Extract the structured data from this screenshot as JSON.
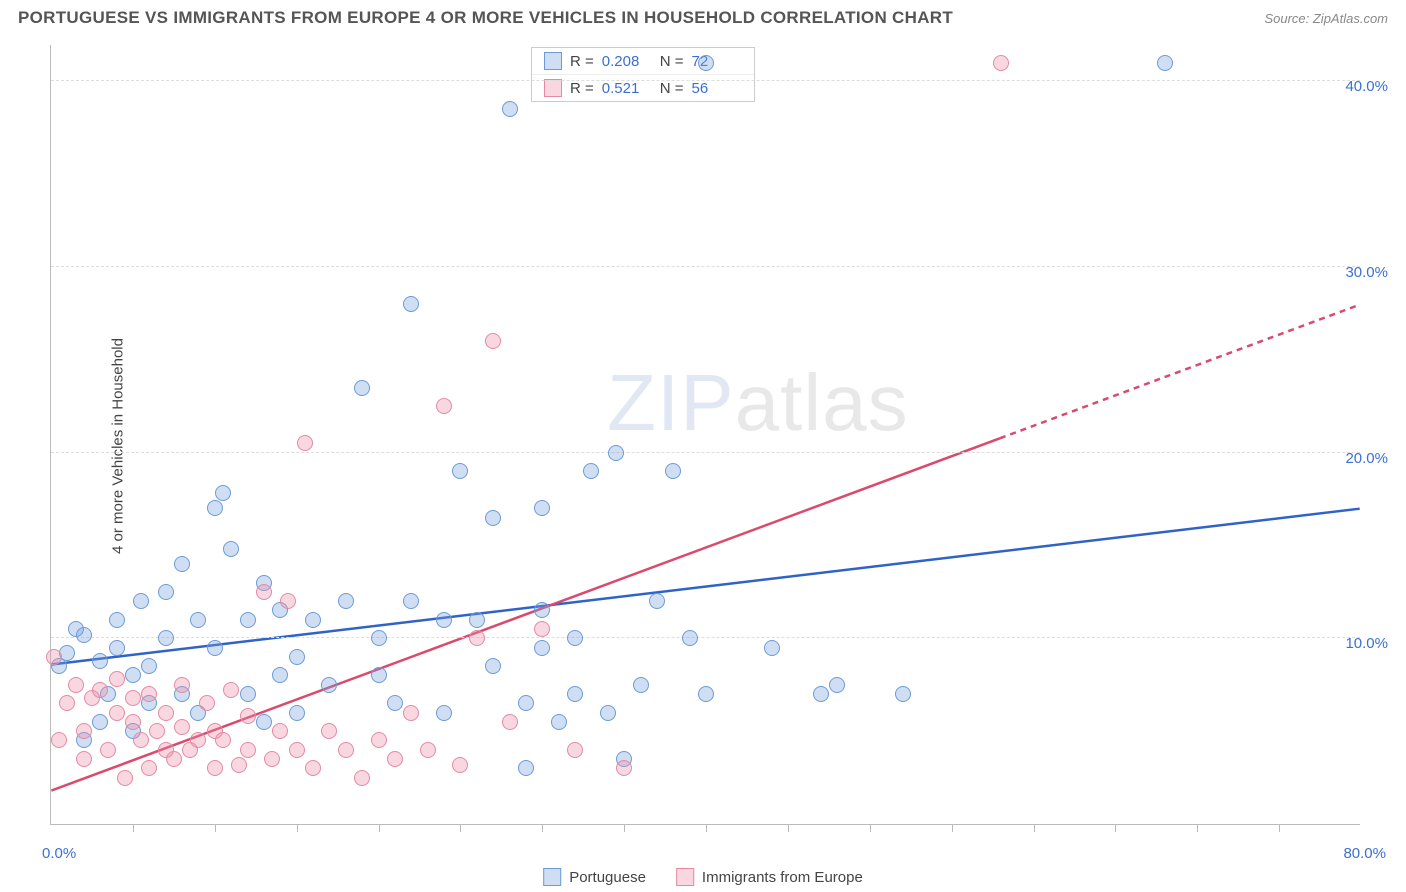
{
  "title": "PORTUGUESE VS IMMIGRANTS FROM EUROPE 4 OR MORE VEHICLES IN HOUSEHOLD CORRELATION CHART",
  "source": "Source: ZipAtlas.com",
  "watermark": "ZIPatlas",
  "y_axis_label": "4 or more Vehicles in Household",
  "chart": {
    "type": "scatter",
    "xlim": [
      0,
      80
    ],
    "ylim": [
      0,
      42
    ],
    "x_origin_label": "0.0%",
    "x_max_label": "80.0%",
    "y_ticks": [
      10,
      20,
      30,
      40
    ],
    "y_tick_labels": [
      "10.0%",
      "20.0%",
      "30.0%",
      "40.0%"
    ],
    "x_minor_ticks": [
      5,
      10,
      15,
      20,
      25,
      30,
      35,
      40,
      45,
      50,
      55,
      60,
      65,
      70,
      75
    ],
    "grid_color": "#dddddd",
    "background_color": "#ffffff",
    "point_radius": 8,
    "series": [
      {
        "name": "Portuguese",
        "fill": "rgba(120,160,220,0.35)",
        "stroke": "#6b9bd8",
        "trend_color": "#2f63c7",
        "r": "0.208",
        "n": "72",
        "trend": {
          "y_at_x0": 8.6,
          "y_at_x80": 17.0
        },
        "points": [
          [
            0.5,
            8.5
          ],
          [
            1,
            9.2
          ],
          [
            1.5,
            10.5
          ],
          [
            2,
            10.2
          ],
          [
            2,
            4.5
          ],
          [
            3,
            8.8
          ],
          [
            3,
            5.5
          ],
          [
            3.5,
            7
          ],
          [
            4,
            11
          ],
          [
            4,
            9.5
          ],
          [
            5,
            8
          ],
          [
            5,
            5
          ],
          [
            5.5,
            12
          ],
          [
            6,
            8.5
          ],
          [
            6,
            6.5
          ],
          [
            7,
            10
          ],
          [
            7,
            12.5
          ],
          [
            8,
            7
          ],
          [
            8,
            14
          ],
          [
            9,
            6
          ],
          [
            9,
            11
          ],
          [
            10,
            9.5
          ],
          [
            10,
            17
          ],
          [
            10.5,
            17.8
          ],
          [
            11,
            14.8
          ],
          [
            12,
            7
          ],
          [
            12,
            11
          ],
          [
            13,
            5.5
          ],
          [
            13,
            13
          ],
          [
            14,
            8
          ],
          [
            14,
            11.5
          ],
          [
            15,
            6
          ],
          [
            15,
            9
          ],
          [
            16,
            11
          ],
          [
            17,
            7.5
          ],
          [
            18,
            12
          ],
          [
            19,
            23.5
          ],
          [
            20,
            8
          ],
          [
            20,
            10
          ],
          [
            21,
            6.5
          ],
          [
            22,
            12
          ],
          [
            22,
            28
          ],
          [
            24,
            6
          ],
          [
            24,
            11
          ],
          [
            25,
            19
          ],
          [
            26,
            11
          ],
          [
            27,
            8.5
          ],
          [
            27,
            16.5
          ],
          [
            28,
            38.5
          ],
          [
            29,
            3
          ],
          [
            29,
            6.5
          ],
          [
            30,
            9.5
          ],
          [
            30,
            11.5
          ],
          [
            30,
            17
          ],
          [
            31,
            5.5
          ],
          [
            32,
            7
          ],
          [
            32,
            10
          ],
          [
            33,
            19
          ],
          [
            34,
            6
          ],
          [
            34.5,
            20
          ],
          [
            35,
            3.5
          ],
          [
            36,
            7.5
          ],
          [
            37,
            12
          ],
          [
            38,
            19
          ],
          [
            39,
            10
          ],
          [
            40,
            7
          ],
          [
            40,
            41
          ],
          [
            44,
            9.5
          ],
          [
            47,
            7
          ],
          [
            48,
            7.5
          ],
          [
            52,
            7
          ],
          [
            68,
            41
          ]
        ]
      },
      {
        "name": "Immigrants from Europe",
        "fill": "rgba(235,140,165,0.35)",
        "stroke": "#e48aa3",
        "trend_color": "#d94a6e",
        "r": "0.521",
        "n": "56",
        "trend": {
          "y_at_x0": 1.8,
          "y_at_x80": 28.0
        },
        "points": [
          [
            0.2,
            9
          ],
          [
            0.5,
            4.5
          ],
          [
            1,
            6.5
          ],
          [
            1.5,
            7.5
          ],
          [
            2,
            5
          ],
          [
            2,
            3.5
          ],
          [
            2.5,
            6.8
          ],
          [
            3,
            7.2
          ],
          [
            3.5,
            4
          ],
          [
            4,
            6
          ],
          [
            4,
            7.8
          ],
          [
            4.5,
            2.5
          ],
          [
            5,
            5.5
          ],
          [
            5,
            6.8
          ],
          [
            5.5,
            4.5
          ],
          [
            6,
            3
          ],
          [
            6,
            7
          ],
          [
            6.5,
            5
          ],
          [
            7,
            4
          ],
          [
            7,
            6
          ],
          [
            7.5,
            3.5
          ],
          [
            8,
            5.2
          ],
          [
            8,
            7.5
          ],
          [
            8.5,
            4
          ],
          [
            9,
            4.5
          ],
          [
            9.5,
            6.5
          ],
          [
            10,
            3
          ],
          [
            10,
            5
          ],
          [
            10.5,
            4.5
          ],
          [
            11,
            7.2
          ],
          [
            11.5,
            3.2
          ],
          [
            12,
            5.8
          ],
          [
            12,
            4
          ],
          [
            13,
            12.5
          ],
          [
            13.5,
            3.5
          ],
          [
            14,
            5
          ],
          [
            14.5,
            12
          ],
          [
            15,
            4
          ],
          [
            15.5,
            20.5
          ],
          [
            16,
            3
          ],
          [
            17,
            5
          ],
          [
            18,
            4
          ],
          [
            19,
            2.5
          ],
          [
            20,
            4.5
          ],
          [
            21,
            3.5
          ],
          [
            22,
            6
          ],
          [
            23,
            4
          ],
          [
            24,
            22.5
          ],
          [
            25,
            3.2
          ],
          [
            26,
            10
          ],
          [
            27,
            26
          ],
          [
            28,
            5.5
          ],
          [
            30,
            10.5
          ],
          [
            32,
            4
          ],
          [
            35,
            3
          ],
          [
            58,
            41
          ]
        ]
      }
    ]
  },
  "legend_bottom": {
    "items": [
      "Portuguese",
      "Immigrants from Europe"
    ]
  }
}
